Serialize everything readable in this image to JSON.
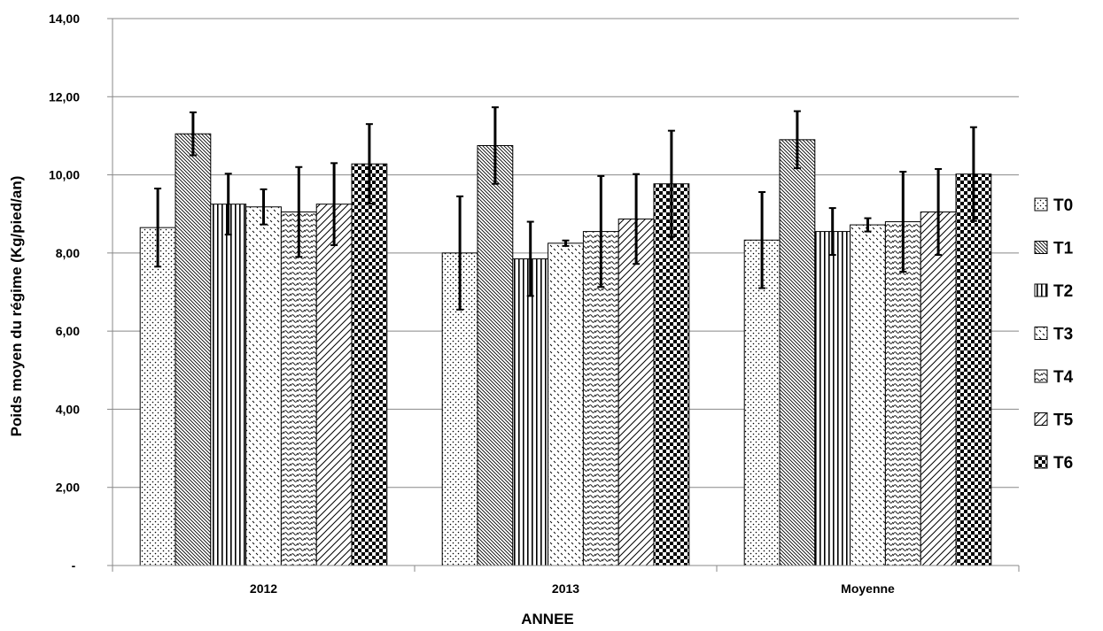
{
  "chart_data": {
    "type": "bar",
    "title": "",
    "xlabel": "ANNEE",
    "ylabel": "Poids moyen du régime (Kg/pied/an)",
    "ylim": [
      0,
      14
    ],
    "y_ticks": [
      {
        "value": 0,
        "label": "-"
      },
      {
        "value": 2,
        "label": "2,00"
      },
      {
        "value": 4,
        "label": "4,00"
      },
      {
        "value": 6,
        "label": "6,00"
      },
      {
        "value": 8,
        "label": "8,00"
      },
      {
        "value": 10,
        "label": "10,00"
      },
      {
        "value": 12,
        "label": "12,00"
      },
      {
        "value": 14,
        "label": "14,00"
      }
    ],
    "grid": true,
    "legend_position": "right",
    "categories": [
      "2012",
      "2013",
      "Moyenne"
    ],
    "series": [
      {
        "name": "T0",
        "pattern": "dots",
        "values": [
          8.65,
          8.0,
          8.33
        ],
        "errors": [
          1.0,
          1.45,
          1.23
        ]
      },
      {
        "name": "T1",
        "pattern": "diag-dense",
        "values": [
          11.05,
          10.75,
          10.9
        ],
        "errors": [
          0.55,
          0.98,
          0.73
        ]
      },
      {
        "name": "T2",
        "pattern": "vertical",
        "values": [
          9.25,
          7.85,
          8.55
        ],
        "errors": [
          0.78,
          0.95,
          0.6
        ]
      },
      {
        "name": "T3",
        "pattern": "dashes",
        "values": [
          9.18,
          8.25,
          8.72
        ],
        "errors": [
          0.45,
          0.07,
          0.17
        ]
      },
      {
        "name": "T4",
        "pattern": "waves",
        "values": [
          9.05,
          8.55,
          8.8
        ],
        "errors": [
          1.15,
          1.42,
          1.28
        ]
      },
      {
        "name": "T5",
        "pattern": "diag-wide",
        "values": [
          9.25,
          8.87,
          9.05
        ],
        "errors": [
          1.05,
          1.15,
          1.1
        ]
      },
      {
        "name": "T6",
        "pattern": "checker",
        "values": [
          10.28,
          9.77,
          10.02
        ],
        "errors": [
          1.02,
          1.36,
          1.2
        ]
      }
    ],
    "colors": {
      "fill": "#ffffff",
      "pattern": "#000000",
      "grid": "#888888",
      "axis": "#888888"
    }
  }
}
